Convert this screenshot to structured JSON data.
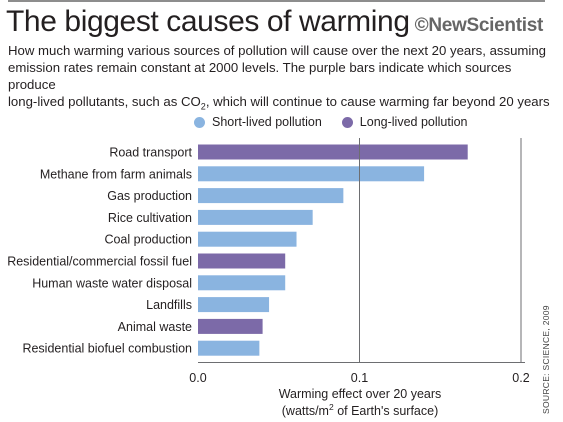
{
  "header": {
    "title": "The biggest causes of warming",
    "brand": "©NewScientist",
    "subtitle_line1": "How much warming various sources of pollution will cause over the next 20 years, assuming",
    "subtitle_line2": "emission rates remain constant at 2000 levels. The purple bars indicate which sources produce",
    "subtitle_line3_pre": "long-lived pollutants, such as CO",
    "subtitle_line3_sub": "2",
    "subtitle_line3_post": ", which will continue to cause warming far beyond 20 years"
  },
  "source_note": "SOURCE: SCIENCE, 2009",
  "colors": {
    "short": "#8ab4e0",
    "long": "#7c6aa8",
    "grid": "#6d6e71"
  },
  "chart_data": {
    "type": "bar",
    "orientation": "horizontal",
    "legend": [
      {
        "name": "Short-lived pollution",
        "color": "#8ab4e0"
      },
      {
        "name": "Long-lived pollution",
        "color": "#7c6aa8"
      }
    ],
    "legend_position": "top",
    "categories": [
      "Road transport",
      "Methane from farm animals",
      "Gas production",
      "Rice cultivation",
      "Coal production",
      "Residential/commercial fossil fuel",
      "Human waste water disposal",
      "Landfills",
      "Animal waste",
      "Residential biofuel combustion"
    ],
    "values": [
      0.167,
      0.14,
      0.09,
      0.071,
      0.061,
      0.054,
      0.054,
      0.044,
      0.04,
      0.038
    ],
    "lifetime": [
      "long",
      "short",
      "short",
      "short",
      "short",
      "long",
      "short",
      "short",
      "long",
      "short"
    ],
    "xlim": [
      0,
      0.2
    ],
    "xticks": [
      0,
      0.1,
      0.2
    ],
    "xtick_labels": [
      "0.0",
      "0.1",
      "0.2"
    ],
    "xlabel_line1": "Warming effect over 20 years",
    "xlabel_line2_pre": "(watts/m",
    "xlabel_line2_sup": "2",
    "xlabel_line2_post": " of Earth's surface)",
    "grid": "vertical"
  }
}
